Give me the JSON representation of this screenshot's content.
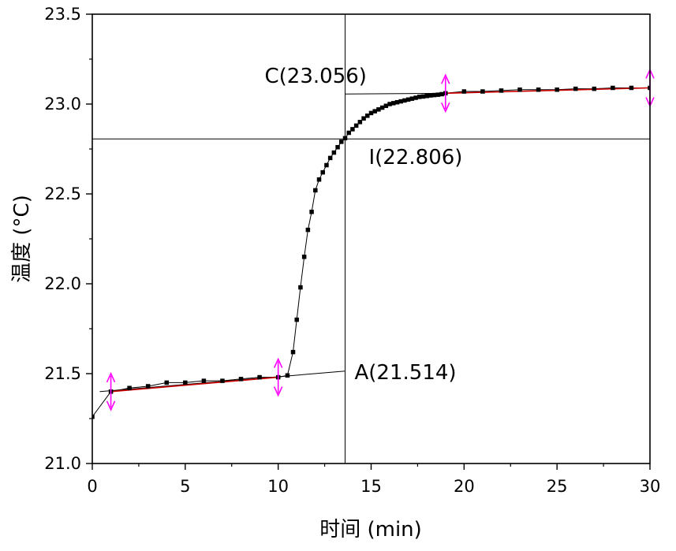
{
  "chart_data": {
    "type": "scatter",
    "xlabel": "时间 (min)",
    "ylabel": "温度 (°C)",
    "xlim": [
      0,
      30
    ],
    "ylim": [
      21.0,
      23.5
    ],
    "xticks": [
      0,
      5,
      10,
      15,
      20,
      25,
      30
    ],
    "yticks": [
      21.0,
      21.5,
      22.0,
      22.5,
      23.0,
      23.5
    ],
    "xtick_labels": [
      "0",
      "5",
      "10",
      "15",
      "20",
      "25",
      "30"
    ],
    "ytick_labels": [
      "21.0",
      "21.5",
      "22.0",
      "22.5",
      "23.0",
      "23.5"
    ],
    "grid": false,
    "series": [
      {
        "marker_color": "#000000",
        "points": [
          [
            0,
            21.26
          ],
          [
            1,
            21.4
          ],
          [
            2,
            21.42
          ],
          [
            3,
            21.43
          ],
          [
            4,
            21.45
          ],
          [
            5,
            21.45
          ],
          [
            6,
            21.46
          ],
          [
            7,
            21.46
          ],
          [
            8,
            21.47
          ],
          [
            9,
            21.48
          ],
          [
            10,
            21.48
          ],
          [
            10.5,
            21.49
          ],
          [
            10.8,
            21.62
          ],
          [
            11.0,
            21.8
          ],
          [
            11.2,
            21.98
          ],
          [
            11.4,
            22.15
          ],
          [
            11.6,
            22.3
          ],
          [
            11.8,
            22.4
          ],
          [
            12.0,
            22.52
          ],
          [
            12.2,
            22.58
          ],
          [
            12.4,
            22.62
          ],
          [
            12.6,
            22.66
          ],
          [
            12.8,
            22.7
          ],
          [
            13.0,
            22.73
          ],
          [
            13.2,
            22.76
          ],
          [
            13.4,
            22.79
          ],
          [
            13.6,
            22.81
          ],
          [
            13.8,
            22.84
          ],
          [
            14.0,
            22.86
          ],
          [
            14.2,
            22.88
          ],
          [
            14.4,
            22.9
          ],
          [
            14.6,
            22.92
          ],
          [
            14.8,
            22.935
          ],
          [
            15.0,
            22.95
          ],
          [
            15.2,
            22.96
          ],
          [
            15.4,
            22.97
          ],
          [
            15.6,
            22.98
          ],
          [
            15.8,
            22.99
          ],
          [
            16.0,
            23.0
          ],
          [
            16.2,
            23.005
          ],
          [
            16.4,
            23.01
          ],
          [
            16.6,
            23.015
          ],
          [
            16.8,
            23.02
          ],
          [
            17.0,
            23.025
          ],
          [
            17.2,
            23.03
          ],
          [
            17.4,
            23.035
          ],
          [
            17.6,
            23.04
          ],
          [
            17.8,
            23.042
          ],
          [
            18.0,
            23.045
          ],
          [
            18.2,
            23.048
          ],
          [
            18.4,
            23.05
          ],
          [
            18.6,
            23.052
          ],
          [
            18.8,
            23.055
          ],
          [
            19.0,
            23.06
          ],
          [
            20,
            23.07
          ],
          [
            21,
            23.07
          ],
          [
            22,
            23.075
          ],
          [
            23,
            23.08
          ],
          [
            24,
            23.08
          ],
          [
            25,
            23.08
          ],
          [
            26,
            23.085
          ],
          [
            27,
            23.085
          ],
          [
            28,
            23.09
          ],
          [
            29,
            23.09
          ],
          [
            30,
            23.09
          ]
        ]
      }
    ],
    "fit_lines": [
      {
        "color": "#cc0000",
        "x": [
          1,
          10
        ],
        "y": [
          21.4,
          21.48
        ]
      },
      {
        "color": "#cc0000",
        "x": [
          19,
          30
        ],
        "y": [
          23.06,
          23.09
        ]
      }
    ],
    "extrapolations": [
      {
        "color": "#000000",
        "x": [
          0.4,
          13.6
        ],
        "y": [
          21.4,
          21.514
        ]
      },
      {
        "color": "#000000",
        "x": [
          13.6,
          19.0
        ],
        "y": [
          23.056,
          23.06
        ]
      }
    ],
    "vertical_line": {
      "x": 13.6,
      "color": "#000000"
    },
    "horizontal_line": {
      "y": 22.806,
      "color": "#000000"
    },
    "range_markers": {
      "x": [
        1,
        10,
        19,
        30
      ],
      "color": "#ff00ff"
    },
    "annotations": [
      {
        "text": "C(23.056)",
        "x": 13.6,
        "y": 23.056
      },
      {
        "text": "I(22.806)",
        "x": 13.6,
        "y": 22.806
      },
      {
        "text": "A(21.514)",
        "x": 13.6,
        "y": 21.514
      }
    ]
  }
}
